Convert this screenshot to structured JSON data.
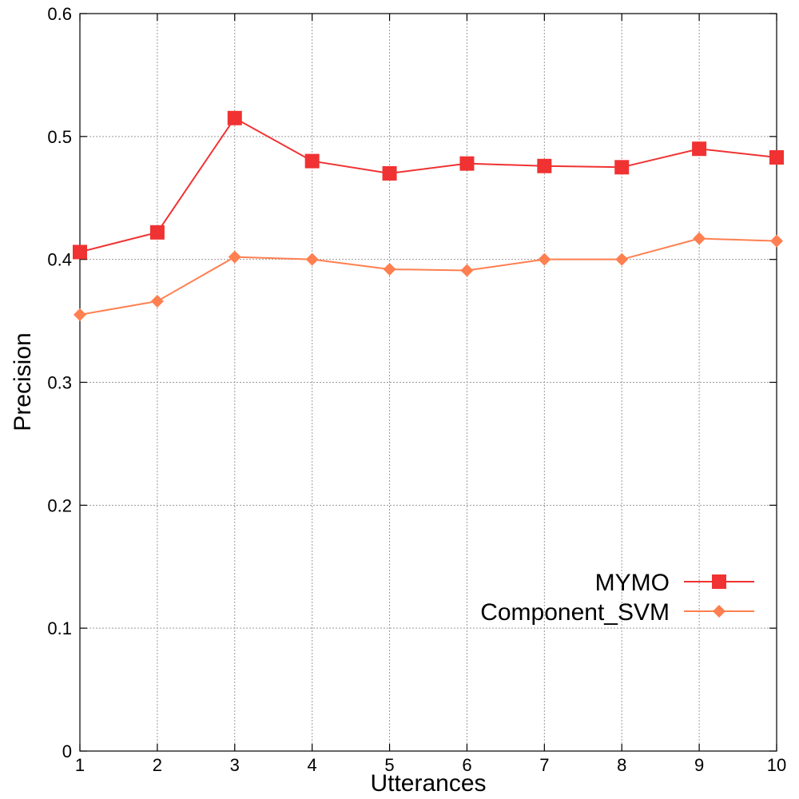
{
  "chart_data": {
    "type": "line",
    "title": "",
    "xlabel": "Utterances",
    "ylabel": "Precision",
    "x": [
      1,
      2,
      3,
      4,
      5,
      6,
      7,
      8,
      9,
      10
    ],
    "xlim": [
      1,
      10
    ],
    "ylim": [
      0,
      0.6
    ],
    "xticks": [
      "1",
      "2",
      "3",
      "4",
      "5",
      "6",
      "7",
      "8",
      "9",
      "10"
    ],
    "yticks": [
      "0",
      "0.1",
      "0.2",
      "0.3",
      "0.4",
      "0.5",
      "0.6"
    ],
    "grid": true,
    "legend_position": "bottom-right",
    "series": [
      {
        "name": "MYMO",
        "color": "#f03232",
        "marker": "square",
        "values": [
          0.406,
          0.422,
          0.515,
          0.48,
          0.47,
          0.478,
          0.476,
          0.475,
          0.49,
          0.483
        ]
      },
      {
        "name": "Component_SVM",
        "color": "#ff7f50",
        "marker": "diamond",
        "values": [
          0.355,
          0.366,
          0.402,
          0.4,
          0.392,
          0.391,
          0.4,
          0.4,
          0.417,
          0.415
        ]
      }
    ]
  }
}
